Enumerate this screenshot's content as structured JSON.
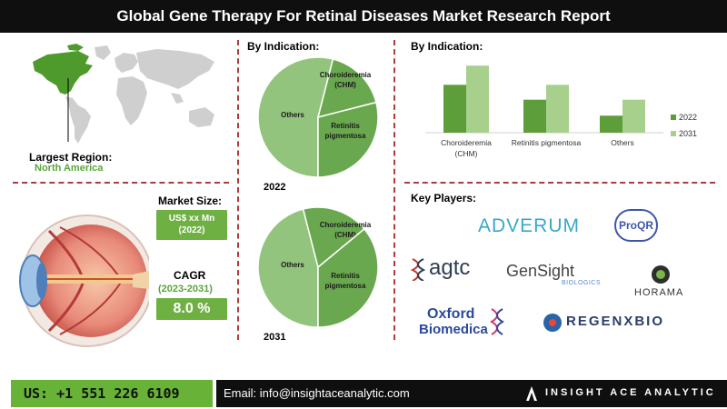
{
  "header": {
    "title": "Global Gene Therapy For Retinal Diseases Market Research Report"
  },
  "region": {
    "label": "Largest Region:",
    "value": "North America"
  },
  "market_size": {
    "label": "Market Size:",
    "value_line1": "US$ xx Mn",
    "value_line2": "(2022)"
  },
  "cagr": {
    "label": "CAGR",
    "period": "(2023-2031)",
    "value": "8.0 %"
  },
  "pie_section": {
    "title": "By Indication:"
  },
  "bar_section": {
    "title": "By Indication:"
  },
  "key_players": {
    "title": "Key Players:",
    "logos": [
      "ADVERUM",
      "ProQR",
      "agtc",
      "GenSight",
      "BIOLOGICS",
      "HORAMA",
      "Oxford",
      "Biomedica",
      "REGENXBIO"
    ]
  },
  "footer": {
    "phone": "US: +1 551 226 6109",
    "email": "Email: info@insightaceanalytic.com",
    "brand": "INSIGHT ACE ANALYTIC"
  },
  "colors": {
    "dark_green": "#5e9e3a",
    "light_green": "#a8d08d",
    "pie_light": "#93c47d",
    "pie_dark": "#6aa84f",
    "accent_red": "#b23a3a"
  },
  "chart_data": [
    {
      "type": "pie",
      "year_label": "2022",
      "slices": [
        {
          "label": "Others",
          "value": 54
        },
        {
          "label": "Choroideremia (CHM)",
          "value": 17
        },
        {
          "label": "Retinitis pigmentosa",
          "value": 29
        }
      ]
    },
    {
      "type": "pie",
      "year_label": "2031",
      "slices": [
        {
          "label": "Others",
          "value": 46
        },
        {
          "label": "Choroideremia (CHM)",
          "value": 18
        },
        {
          "label": "Retinitis pigmentosa",
          "value": 36
        }
      ]
    },
    {
      "type": "bar",
      "categories": [
        "Choroideremia (CHM)",
        "Retinitis pigmentosa",
        "Others"
      ],
      "series": [
        {
          "name": "2022",
          "values": [
            45,
            31,
            16
          ]
        },
        {
          "name": "2031",
          "values": [
            63,
            45,
            31
          ]
        }
      ],
      "ylim": [
        0,
        70
      ],
      "grid": false,
      "legend": "right"
    }
  ]
}
